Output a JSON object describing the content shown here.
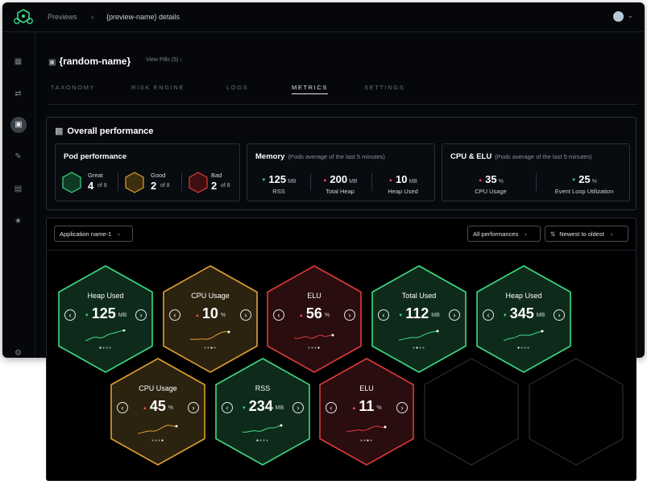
{
  "topbar": {
    "crumbs": [
      "Previews",
      "{preview-name} details"
    ]
  },
  "page": {
    "title": "{random-name}",
    "view_pills": "View Pills (5)"
  },
  "tabs": [
    "TAXONOMY",
    "RISK ENGINE",
    "LOGS",
    "METRICS",
    "SETTINGS"
  ],
  "active_tab": "METRICS",
  "overall": {
    "title": "Overall performance",
    "pod": {
      "title": "Pod performance",
      "items": [
        {
          "label": "Great",
          "count": "4",
          "of": "of 8",
          "color": "#3ddc84"
        },
        {
          "label": "Good",
          "count": "2",
          "of": "of 8",
          "color": "#e0a030"
        },
        {
          "label": "Bad",
          "count": "2",
          "of": "of 8",
          "color": "#e03a3a"
        }
      ]
    },
    "memory": {
      "title": "Memory",
      "subtitle": "(Pods average of the last 5 minutes)",
      "metrics": [
        {
          "value": "125",
          "unit": "MB",
          "label": "RSS",
          "trend": "down"
        },
        {
          "value": "200",
          "unit": "MB",
          "label": "Total Heap",
          "trend": "up"
        },
        {
          "value": "10",
          "unit": "MB",
          "label": "Heap Used",
          "trend": "up"
        }
      ]
    },
    "cpu": {
      "title": "CPU & ELU",
      "subtitle": "(Pods average of the last 5 minutes)",
      "metrics": [
        {
          "value": "35",
          "unit": "%",
          "label": "CPU Usage",
          "trend": "up"
        },
        {
          "value": "25",
          "unit": "%",
          "label": "Event Loop Utilization",
          "trend": "down"
        }
      ]
    }
  },
  "filters": {
    "app": "Application name-1",
    "performance": "All performances",
    "sort": "Newest to oldest"
  },
  "colors": {
    "great": "#3ddc84",
    "good": "#e0a030",
    "bad": "#e03a3a"
  },
  "hexes": [
    {
      "title": "Heap Used",
      "value": "125",
      "unit": "MB",
      "status": "great",
      "trend": "down"
    },
    {
      "title": "CPU Usage",
      "value": "10",
      "unit": "%",
      "status": "good",
      "trend": "up"
    },
    {
      "title": "ELU",
      "value": "56",
      "unit": "%",
      "status": "bad",
      "trend": "up"
    },
    {
      "title": "Total Used",
      "value": "112",
      "unit": "MB",
      "status": "great",
      "trend": "down"
    },
    {
      "title": "Heap Used",
      "value": "345",
      "unit": "MB",
      "status": "great",
      "trend": "down"
    },
    {
      "title": "CPU Usage",
      "value": "45",
      "unit": "%",
      "status": "good",
      "trend": "up"
    },
    {
      "title": "RSS",
      "value": "234",
      "unit": "MB",
      "status": "great",
      "trend": "down"
    },
    {
      "title": "ELU",
      "value": "11",
      "unit": "%",
      "status": "bad",
      "trend": "up"
    }
  ]
}
